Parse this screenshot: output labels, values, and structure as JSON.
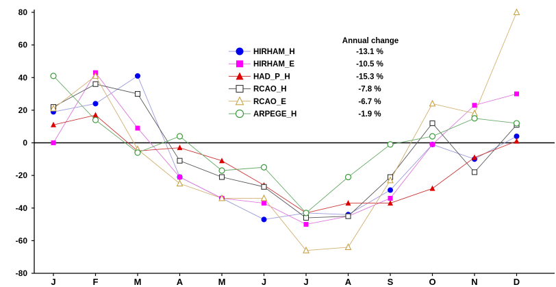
{
  "chart_data": {
    "type": "line",
    "title": "",
    "xlabel": "",
    "ylabel": "",
    "categories": [
      "J",
      "F",
      "M",
      "A",
      "M",
      "J",
      "J",
      "A",
      "S",
      "O",
      "N",
      "D"
    ],
    "ylim": [
      -80,
      80
    ],
    "yticks": [
      -80,
      -60,
      -40,
      -20,
      0,
      20,
      40,
      60,
      80
    ],
    "grid": false,
    "zero_line": true,
    "legend_position": "top-center",
    "annotation_title": "Annual change",
    "series": [
      {
        "name": "HIRHAM_H",
        "marker": "filled-circle",
        "color": "#0000ee",
        "line_color": "#9999dd",
        "annual_change": "-13.1 %",
        "values": [
          19,
          24,
          41,
          -21,
          -34,
          -47,
          -43,
          -44,
          -29,
          -1,
          -10,
          4
        ]
      },
      {
        "name": "HIRHAM_E",
        "marker": "filled-square",
        "color": "#ff00ff",
        "line_color": "#dd77dd",
        "annual_change": "-10.5 %",
        "values": [
          0,
          43,
          9,
          -21,
          -34,
          -37,
          -50,
          -45,
          -34,
          -1,
          23,
          30
        ]
      },
      {
        "name": "HAD_P_H",
        "marker": "filled-triangle",
        "color": "#dd0000",
        "line_color": "#cc3333",
        "annual_change": "-15.3 %",
        "values": [
          11,
          17,
          -5,
          -3,
          -11,
          -26,
          -43,
          -37,
          -37,
          -28,
          -9,
          1
        ]
      },
      {
        "name": "RCAO_H",
        "marker": "open-square",
        "color": "#333333",
        "line_color": "#555555",
        "annual_change": "-7.8 %",
        "values": [
          22,
          36,
          30,
          -11,
          -21,
          -27,
          -46,
          -45,
          -21,
          12,
          -18,
          11
        ]
      },
      {
        "name": "RCAO_E",
        "marker": "open-triangle",
        "color": "#c8a040",
        "line_color": "#d2b070",
        "annual_change": "-6.7 %",
        "values": [
          21,
          41,
          -4,
          -25,
          -34,
          -34,
          -66,
          -64,
          -23,
          24,
          18,
          80
        ]
      },
      {
        "name": "ARPEGE_H",
        "marker": "open-circle",
        "color": "#3a9a3a",
        "line_color": "#66aa66",
        "annual_change": "-1.9 %",
        "values": [
          41,
          14,
          -6,
          4,
          -17,
          -15,
          -43,
          -21,
          -1,
          4,
          15,
          12
        ]
      }
    ]
  }
}
